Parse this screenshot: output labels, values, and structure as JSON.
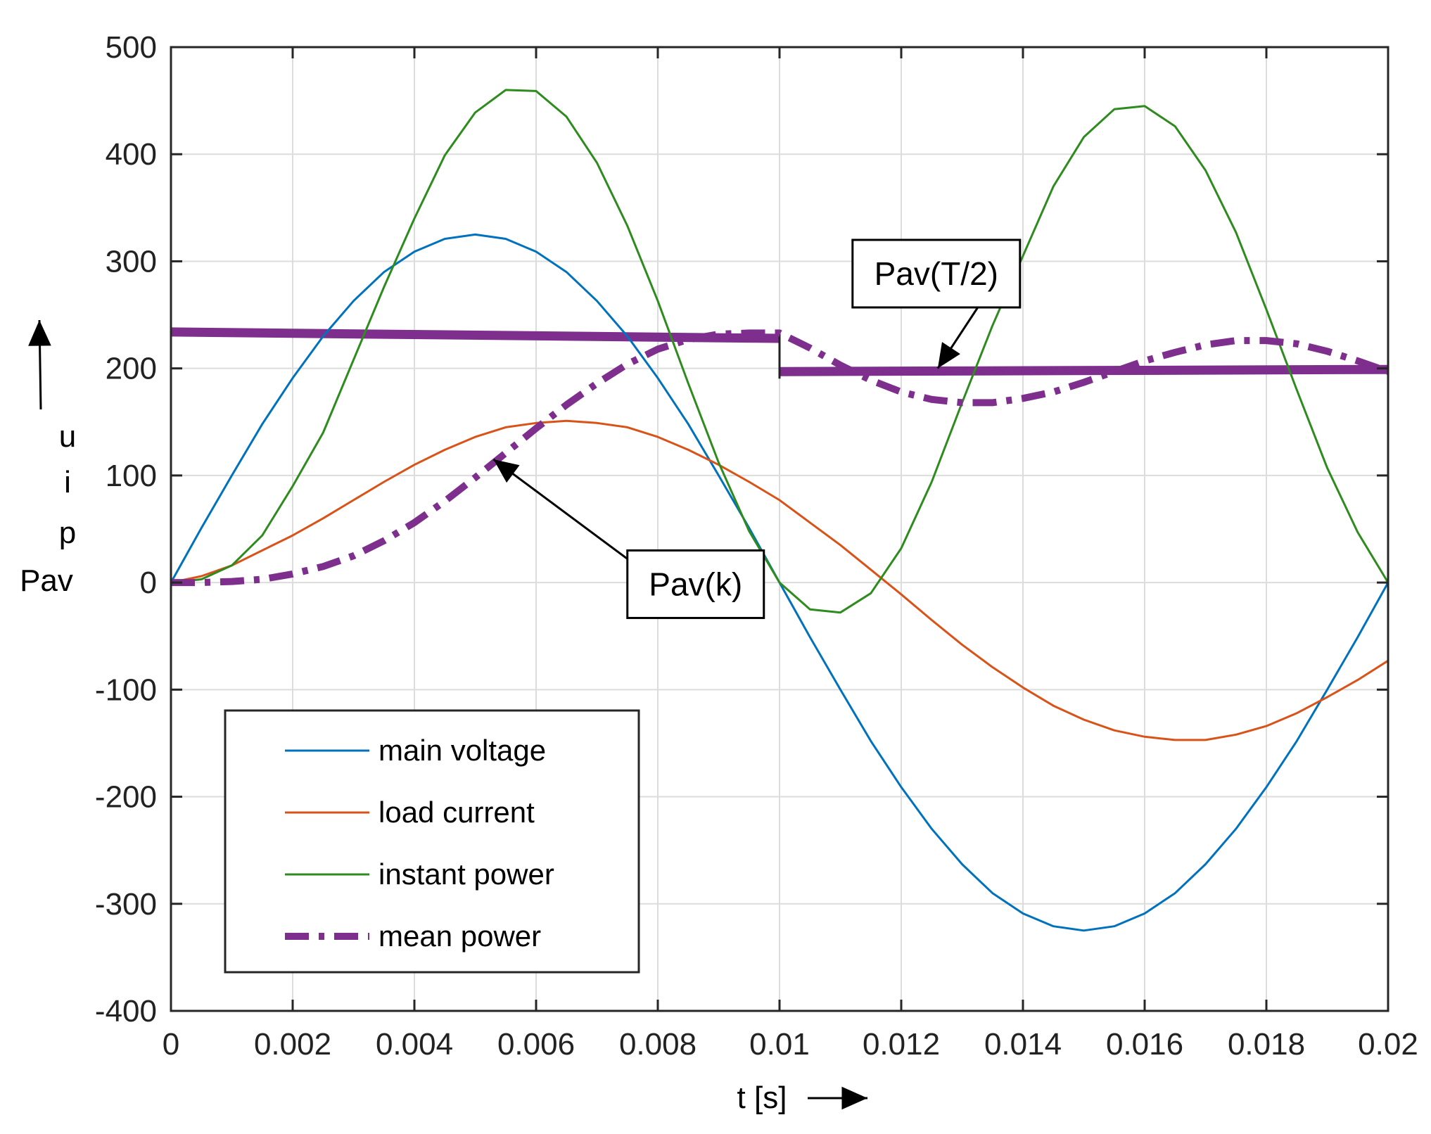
{
  "chart_data": {
    "type": "line",
    "title": "",
    "xlabel": "t [s]",
    "ylabel_lines": [
      "u",
      "i",
      "p",
      "Pav"
    ],
    "xlim": [
      0,
      0.02
    ],
    "ylim": [
      -400,
      500
    ],
    "xticks": [
      0,
      0.002,
      0.004,
      0.006,
      0.008,
      0.01,
      0.012,
      0.014,
      0.016,
      0.018,
      0.02
    ],
    "xtick_labels": [
      "0",
      "0.002",
      "0.004",
      "0.006",
      "0.008",
      "0.01",
      "0.012",
      "0.014",
      "0.016",
      "0.018",
      "0.02"
    ],
    "yticks": [
      -400,
      -300,
      -200,
      -100,
      0,
      100,
      200,
      300,
      400,
      500
    ],
    "ytick_labels": [
      "-400",
      "-300",
      "-200",
      "-100",
      "0",
      "100",
      "200",
      "300",
      "400",
      "500"
    ],
    "grid": true,
    "legend_position": "bottom-left",
    "series": [
      {
        "name": "main voltage",
        "color": "#0072BD",
        "style": "solid",
        "x": [
          0,
          0.0005,
          0.001,
          0.0015,
          0.002,
          0.0025,
          0.003,
          0.0035,
          0.004,
          0.0045,
          0.005,
          0.0055,
          0.006,
          0.0065,
          0.007,
          0.0075,
          0.008,
          0.0085,
          0.009,
          0.0095,
          0.01,
          0.0105,
          0.011,
          0.0115,
          0.012,
          0.0125,
          0.013,
          0.0135,
          0.014,
          0.0145,
          0.015,
          0.0155,
          0.016,
          0.0165,
          0.017,
          0.0175,
          0.018,
          0.0185,
          0.019,
          0.0195,
          0.02
        ],
        "values": [
          0,
          51,
          100,
          148,
          191,
          230,
          263,
          290,
          309,
          321,
          325,
          321,
          309,
          290,
          263,
          230,
          191,
          148,
          100,
          51,
          0,
          -51,
          -100,
          -148,
          -191,
          -230,
          -263,
          -290,
          -309,
          -321,
          -325,
          -321,
          -309,
          -290,
          -263,
          -230,
          -191,
          -148,
          -100,
          -51,
          0
        ]
      },
      {
        "name": "load current",
        "color": "#D95319",
        "style": "solid",
        "x": [
          0,
          0.0005,
          0.001,
          0.0015,
          0.002,
          0.0025,
          0.003,
          0.0035,
          0.004,
          0.0045,
          0.005,
          0.0055,
          0.006,
          0.0065,
          0.007,
          0.0075,
          0.008,
          0.0085,
          0.009,
          0.0095,
          0.01,
          0.0105,
          0.011,
          0.0115,
          0.012,
          0.0125,
          0.013,
          0.0135,
          0.014,
          0.0145,
          0.015,
          0.0155,
          0.016,
          0.0165,
          0.017,
          0.0175,
          0.018,
          0.0185,
          0.019,
          0.0195,
          0.02
        ],
        "values": [
          0,
          6,
          16,
          30,
          44,
          60,
          77,
          94,
          110,
          124,
          136,
          145,
          149,
          151,
          149,
          145,
          136,
          124,
          110,
          94,
          77,
          56,
          35,
          12,
          -11,
          -35,
          -58,
          -79,
          -98,
          -115,
          -128,
          -138,
          -144,
          -147,
          -147,
          -142,
          -134,
          -122,
          -107,
          -91,
          -73
        ]
      },
      {
        "name": "instant power",
        "color": "#2E8B1E",
        "style": "solid",
        "x": [
          0,
          0.0005,
          0.001,
          0.0015,
          0.002,
          0.0025,
          0.003,
          0.0035,
          0.004,
          0.0045,
          0.005,
          0.0055,
          0.006,
          0.0065,
          0.007,
          0.0075,
          0.008,
          0.0085,
          0.009,
          0.0095,
          0.01,
          0.0105,
          0.011,
          0.0115,
          0.012,
          0.0125,
          0.013,
          0.0135,
          0.014,
          0.0145,
          0.015,
          0.0155,
          0.016,
          0.0165,
          0.017,
          0.0175,
          0.018,
          0.0185,
          0.019,
          0.0195,
          0.02
        ],
        "values": [
          0,
          3,
          16,
          44,
          90,
          140,
          208,
          276,
          340,
          399,
          439,
          460,
          459,
          435,
          392,
          333,
          263,
          186,
          112,
          48,
          0,
          -25,
          -28,
          -10,
          32,
          94,
          168,
          240,
          305,
          370,
          416,
          442,
          445,
          426,
          385,
          327,
          255,
          180,
          107,
          47,
          0
        ]
      },
      {
        "name": "mean power",
        "color": "#7E2F8E",
        "style": "dashdot",
        "x": [
          0,
          0.0005,
          0.001,
          0.0015,
          0.002,
          0.0025,
          0.003,
          0.0035,
          0.004,
          0.0045,
          0.005,
          0.0055,
          0.006,
          0.0065,
          0.007,
          0.0075,
          0.008,
          0.0085,
          0.009,
          0.0095,
          0.01,
          0.0105,
          0.011,
          0.0115,
          0.012,
          0.0125,
          0.013,
          0.0135,
          0.014,
          0.0145,
          0.015,
          0.0155,
          0.016,
          0.0165,
          0.017,
          0.0175,
          0.018,
          0.0185,
          0.019,
          0.0195,
          0.02
        ],
        "values": [
          0,
          0,
          1,
          3,
          8,
          15,
          25,
          39,
          56,
          76,
          98,
          121,
          144,
          166,
          186,
          204,
          218,
          227,
          232,
          233,
          233,
          219,
          203,
          189,
          178,
          171,
          168,
          168,
          172,
          178,
          187,
          197,
          207,
          215,
          222,
          226,
          226,
          223,
          216,
          207,
          197
        ]
      }
    ],
    "mean_levels": [
      {
        "name": "Pav(T/2) first half",
        "color": "#7E2F8E",
        "x_start": 0,
        "x_end": 0.01,
        "y_start": 234,
        "y_end": 228
      },
      {
        "name": "Pav(T/2) second half",
        "color": "#7E2F8E",
        "x_start": 0.01,
        "x_end": 0.02,
        "y_start": 197,
        "y_end": 199
      }
    ],
    "annotations": [
      {
        "text": "Pav(T/2)",
        "box_x": 0.0112,
        "box_y": 320,
        "arrow_to_x": 0.0126,
        "arrow_to_y": 200
      },
      {
        "text": "Pav(k)",
        "box_x": 0.0075,
        "box_y": 30,
        "arrow_to_x": 0.0053,
        "arrow_to_y": 115
      }
    ]
  }
}
